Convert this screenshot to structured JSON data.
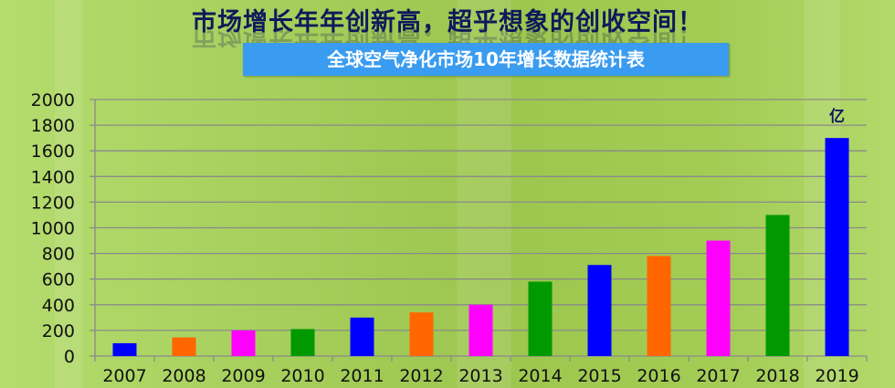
{
  "headline": "市场增长年年创新高，超乎想象的创收空间！",
  "chart_data": {
    "type": "bar",
    "title": "全球空气净化市场10年增长数据统计表",
    "unit_label": "亿",
    "categories": [
      "2007",
      "2008",
      "2009",
      "2010",
      "2011",
      "2012",
      "2013",
      "2014",
      "2015",
      "2016",
      "2017",
      "2018",
      "2019"
    ],
    "values": [
      100,
      145,
      200,
      210,
      300,
      340,
      400,
      580,
      710,
      780,
      900,
      1100,
      1700
    ],
    "bar_colors": [
      "#0000ff",
      "#ff6600",
      "#ff00ff",
      "#009900",
      "#0000ff",
      "#ff6600",
      "#ff00ff",
      "#009900",
      "#0000ff",
      "#ff6600",
      "#ff00ff",
      "#009900",
      "#0000ff"
    ],
    "ylim": [
      0,
      2000
    ],
    "yticks": [
      0,
      200,
      400,
      600,
      800,
      1000,
      1200,
      1400,
      1600,
      1800,
      2000
    ],
    "grid": true,
    "xlabel": "",
    "ylabel": ""
  }
}
